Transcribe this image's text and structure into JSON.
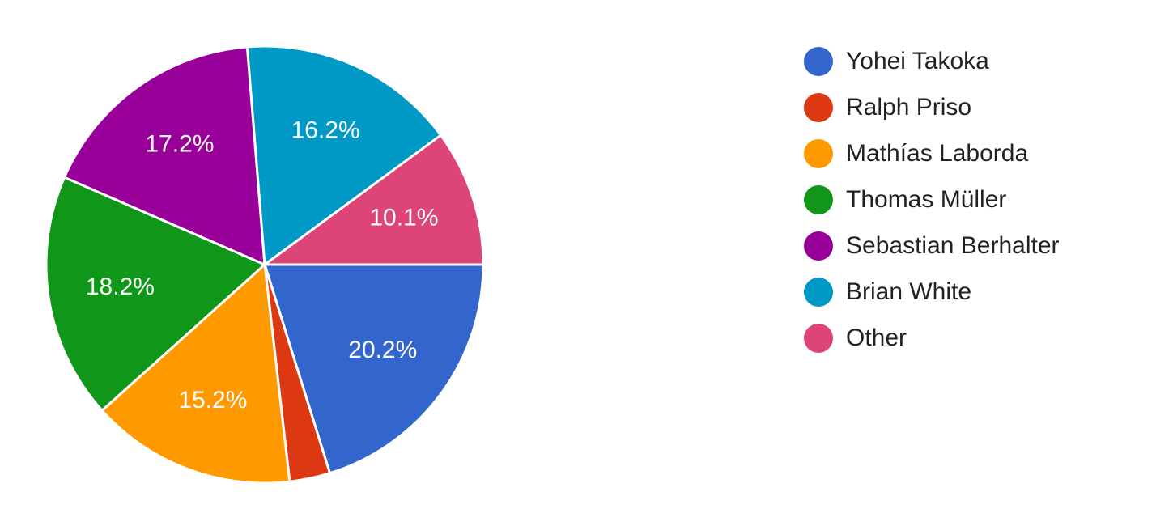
{
  "chart_data": {
    "type": "pie",
    "categories": [
      "Yohei Takoka",
      "Ralph Priso",
      "Mathías Laborda",
      "Thomas Müller",
      "Sebastian Berhalter",
      "Brian White",
      "Other"
    ],
    "values": [
      20.2,
      3.0,
      15.2,
      18.2,
      17.2,
      16.2,
      10.1
    ],
    "value_labels": [
      "20.2%",
      null,
      "15.2%",
      "18.2%",
      "17.2%",
      "16.2%",
      "10.1%"
    ],
    "colors": [
      "#3366cc",
      "#dc3912",
      "#ff9900",
      "#109618",
      "#990099",
      "#0099c6",
      "#dd4477"
    ],
    "legend": "right"
  }
}
